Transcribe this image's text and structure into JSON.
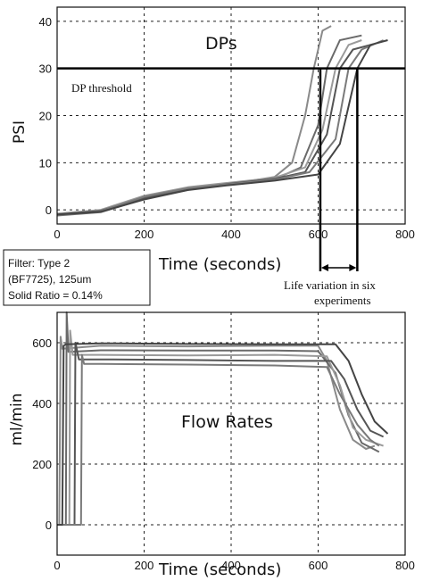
{
  "chart_data": [
    {
      "type": "line",
      "title": "DPs",
      "ylabel": "PSI",
      "xlabel": "Time (seconds)",
      "xlim": [
        0,
        800
      ],
      "ylim": [
        -3,
        43
      ],
      "xticks": [
        0,
        200,
        400,
        600,
        800
      ],
      "yticks": [
        0,
        10,
        20,
        30,
        40
      ],
      "grid": true,
      "threshold": {
        "label": "DP threshold",
        "value": 30
      },
      "annotation": {
        "lines": [
          "Life variation in six",
          "experiments"
        ],
        "from_x": 605,
        "to_x": 690
      },
      "series": [
        {
          "values": [
            [
              0,
              -1
            ],
            [
              100,
              0
            ],
            [
              200,
              2.5
            ],
            [
              300,
              4.5
            ],
            [
              400,
              5.5
            ],
            [
              500,
              7
            ],
            [
              540,
              10
            ],
            [
              570,
              20
            ],
            [
              590,
              30
            ],
            [
              610,
              38
            ],
            [
              630,
              39
            ]
          ]
        },
        {
          "values": [
            [
              0,
              -1.2
            ],
            [
              100,
              -0.5
            ],
            [
              200,
              2.3
            ],
            [
              300,
              4.3
            ],
            [
              400,
              5.4
            ],
            [
              500,
              6.5
            ],
            [
              560,
              9
            ],
            [
              600,
              18
            ],
            [
              620,
              30
            ],
            [
              650,
              36
            ],
            [
              700,
              37
            ]
          ]
        },
        {
          "values": [
            [
              0,
              -0.8
            ],
            [
              100,
              0
            ],
            [
              200,
              3
            ],
            [
              300,
              4.8
            ],
            [
              400,
              5.8
            ],
            [
              500,
              6.8
            ],
            [
              570,
              9
            ],
            [
              610,
              17
            ],
            [
              640,
              30
            ],
            [
              670,
              35
            ],
            [
              700,
              36
            ]
          ]
        },
        {
          "values": [
            [
              0,
              -1
            ],
            [
              100,
              -0.2
            ],
            [
              200,
              2.6
            ],
            [
              300,
              4.4
            ],
            [
              400,
              5.6
            ],
            [
              500,
              6.6
            ],
            [
              570,
              8
            ],
            [
              620,
              16
            ],
            [
              650,
              30
            ],
            [
              680,
              34
            ],
            [
              720,
              35
            ]
          ]
        },
        {
          "values": [
            [
              0,
              -1.1
            ],
            [
              100,
              -0.3
            ],
            [
              200,
              2.8
            ],
            [
              300,
              4.6
            ],
            [
              400,
              5.5
            ],
            [
              500,
              6.4
            ],
            [
              580,
              8
            ],
            [
              640,
              15
            ],
            [
              670,
              30
            ],
            [
              700,
              34
            ],
            [
              750,
              36
            ]
          ]
        },
        {
          "values": [
            [
              0,
              -1
            ],
            [
              100,
              -0.4
            ],
            [
              200,
              2.2
            ],
            [
              300,
              4.2
            ],
            [
              400,
              5.3
            ],
            [
              500,
              6.2
            ],
            [
              600,
              7.5
            ],
            [
              650,
              14
            ],
            [
              690,
              30
            ],
            [
              720,
              35
            ],
            [
              760,
              36
            ]
          ]
        }
      ]
    },
    {
      "type": "line",
      "title": "Flow Rates",
      "ylabel": "ml/min",
      "xlabel": "Time (seconds)",
      "xlim": [
        0,
        800
      ],
      "ylim": [
        -100,
        700
      ],
      "xticks": [
        0,
        200,
        400,
        600,
        800
      ],
      "yticks": [
        0,
        200,
        400,
        600
      ],
      "grid": true,
      "series": [
        {
          "values": [
            [
              0,
              0
            ],
            [
              5,
              0
            ],
            [
              8,
              620
            ],
            [
              12,
              580
            ],
            [
              100,
              590
            ],
            [
              300,
              588
            ],
            [
              500,
              590
            ],
            [
              600,
              590
            ],
            [
              620,
              540
            ],
            [
              650,
              380
            ],
            [
              680,
              280
            ],
            [
              710,
              250
            ],
            [
              730,
              260
            ]
          ]
        },
        {
          "values": [
            [
              0,
              0
            ],
            [
              20,
              0
            ],
            [
              22,
              700
            ],
            [
              26,
              570
            ],
            [
              100,
              575
            ],
            [
              300,
              574
            ],
            [
              500,
              574
            ],
            [
              600,
              572
            ],
            [
              640,
              500
            ],
            [
              670,
              360
            ],
            [
              700,
              270
            ],
            [
              740,
              240
            ]
          ]
        },
        {
          "values": [
            [
              0,
              0
            ],
            [
              28,
              0
            ],
            [
              30,
              640
            ],
            [
              36,
              560
            ],
            [
              100,
              560
            ],
            [
              300,
              558
            ],
            [
              500,
              560
            ],
            [
              620,
              555
            ],
            [
              650,
              460
            ],
            [
              680,
              320
            ],
            [
              710,
              280
            ],
            [
              750,
              260
            ]
          ]
        },
        {
          "values": [
            [
              0,
              0
            ],
            [
              40,
              0
            ],
            [
              42,
              600
            ],
            [
              50,
              545
            ],
            [
              100,
              545
            ],
            [
              300,
              543
            ],
            [
              500,
              540
            ],
            [
              630,
              540
            ],
            [
              660,
              480
            ],
            [
              690,
              380
            ],
            [
              720,
              310
            ],
            [
              750,
              290
            ]
          ]
        },
        {
          "values": [
            [
              0,
              0
            ],
            [
              55,
              0
            ],
            [
              57,
              560
            ],
            [
              62,
              530
            ],
            [
              100,
              530
            ],
            [
              300,
              528
            ],
            [
              500,
              525
            ],
            [
              620,
              520
            ],
            [
              650,
              430
            ],
            [
              690,
              330
            ],
            [
              720,
              280
            ],
            [
              740,
              260
            ]
          ]
        },
        {
          "values": [
            [
              0,
              0
            ],
            [
              12,
              0
            ],
            [
              15,
              590
            ],
            [
              20,
              595
            ],
            [
              100,
              598
            ],
            [
              300,
              596
            ],
            [
              500,
              595
            ],
            [
              640,
              595
            ],
            [
              670,
              540
            ],
            [
              700,
              430
            ],
            [
              730,
              340
            ],
            [
              760,
              300
            ]
          ]
        }
      ]
    }
  ],
  "filter_box": {
    "line1": "Filter: Type 2",
    "line2": "(BF7725), 125um",
    "line3": "Solid Ratio = 0.14%"
  }
}
